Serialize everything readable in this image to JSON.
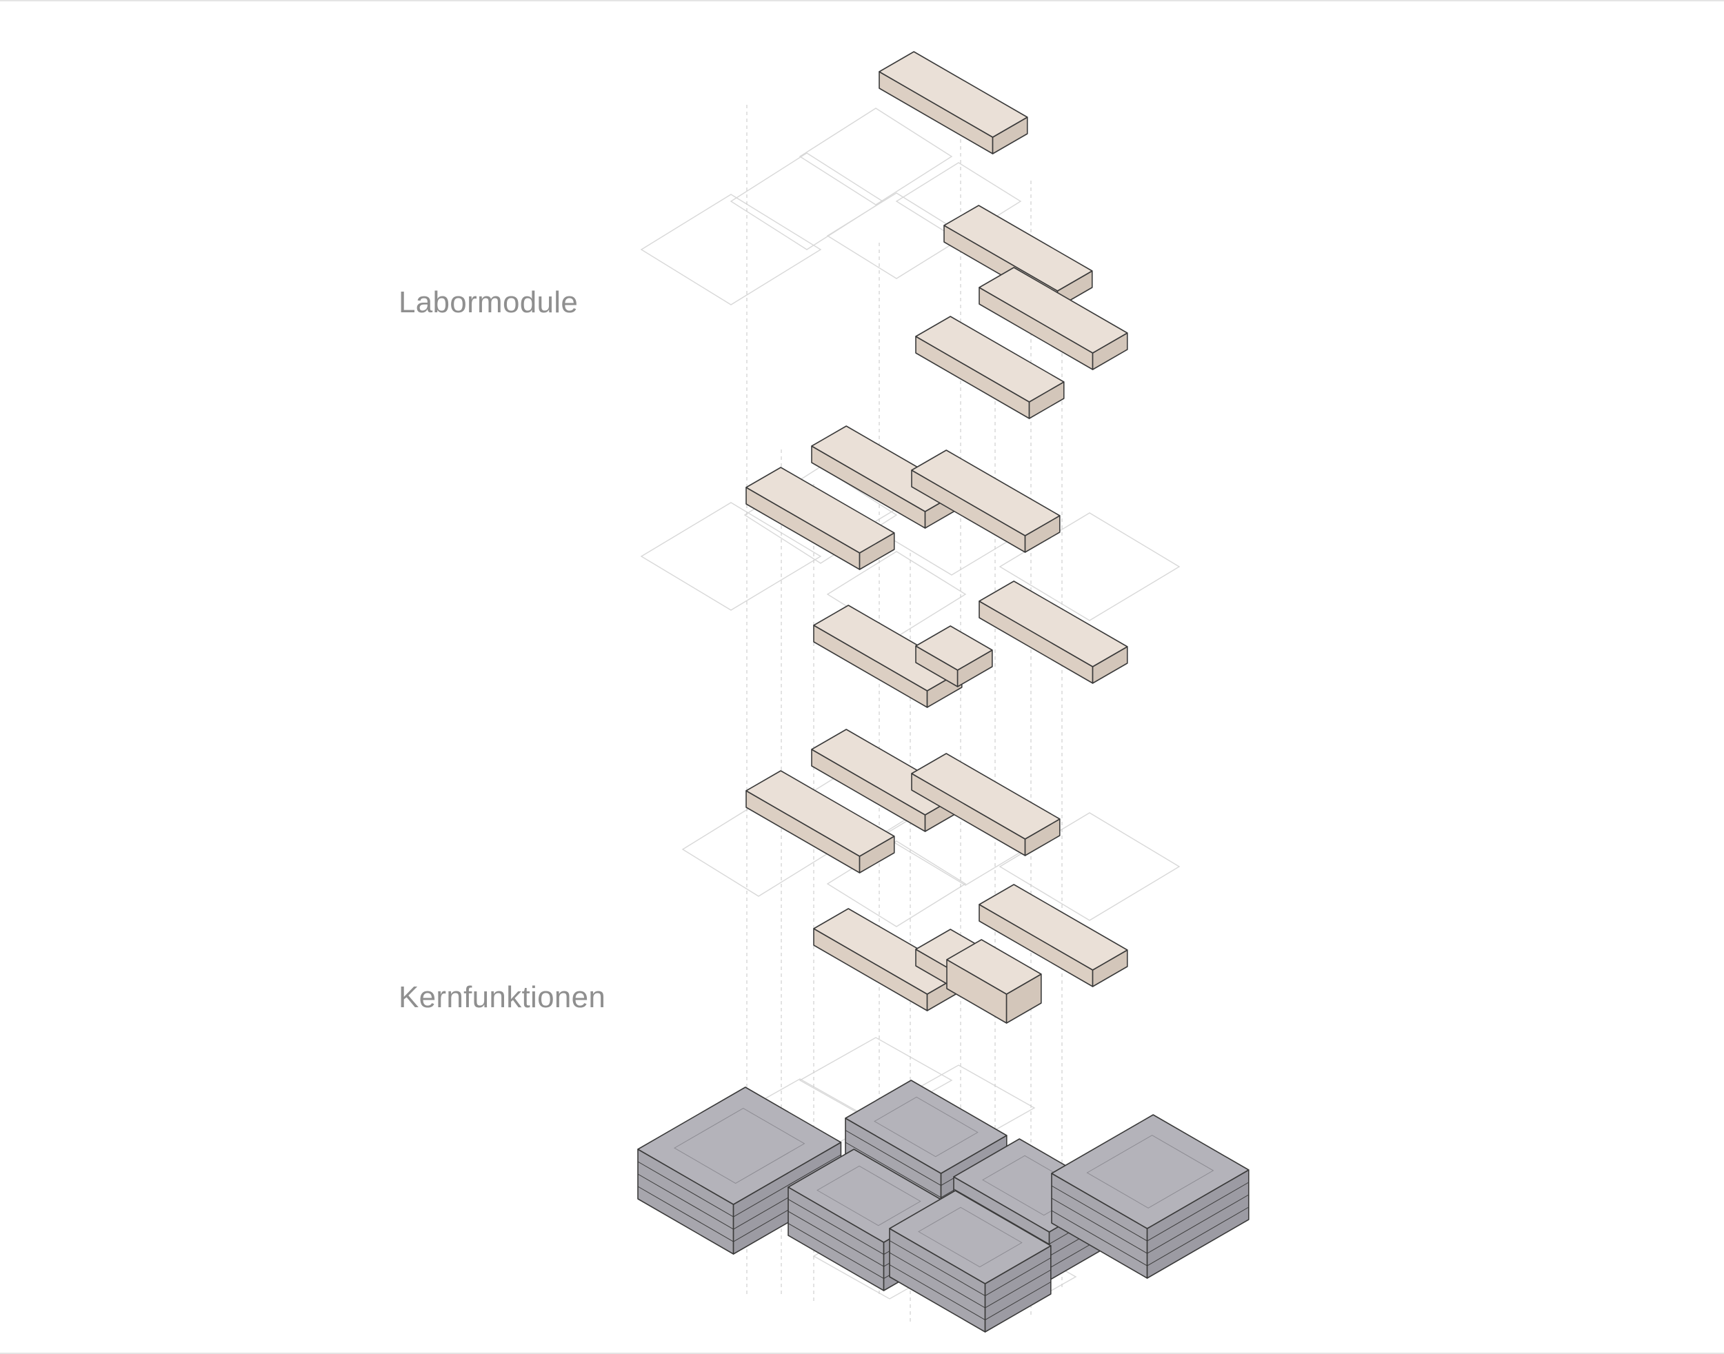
{
  "labels": {
    "lab_modules": "Labormodule",
    "core_functions": "Kernfunktionen"
  },
  "colors": {
    "background": "#ffffff",
    "label_text": "#8f8f8f",
    "lab_top": "#eae0d7",
    "lab_side_left": "#dccfc3",
    "lab_side_right": "#d3c6ba",
    "core_top": "#b4b3ba",
    "core_side_left": "#a7a6ad",
    "core_side_right": "#9c9ba3",
    "edge": "#3a3a3a",
    "floor_plate": "#d8d8d8",
    "projection_line": "#cfcfcf"
  }
}
